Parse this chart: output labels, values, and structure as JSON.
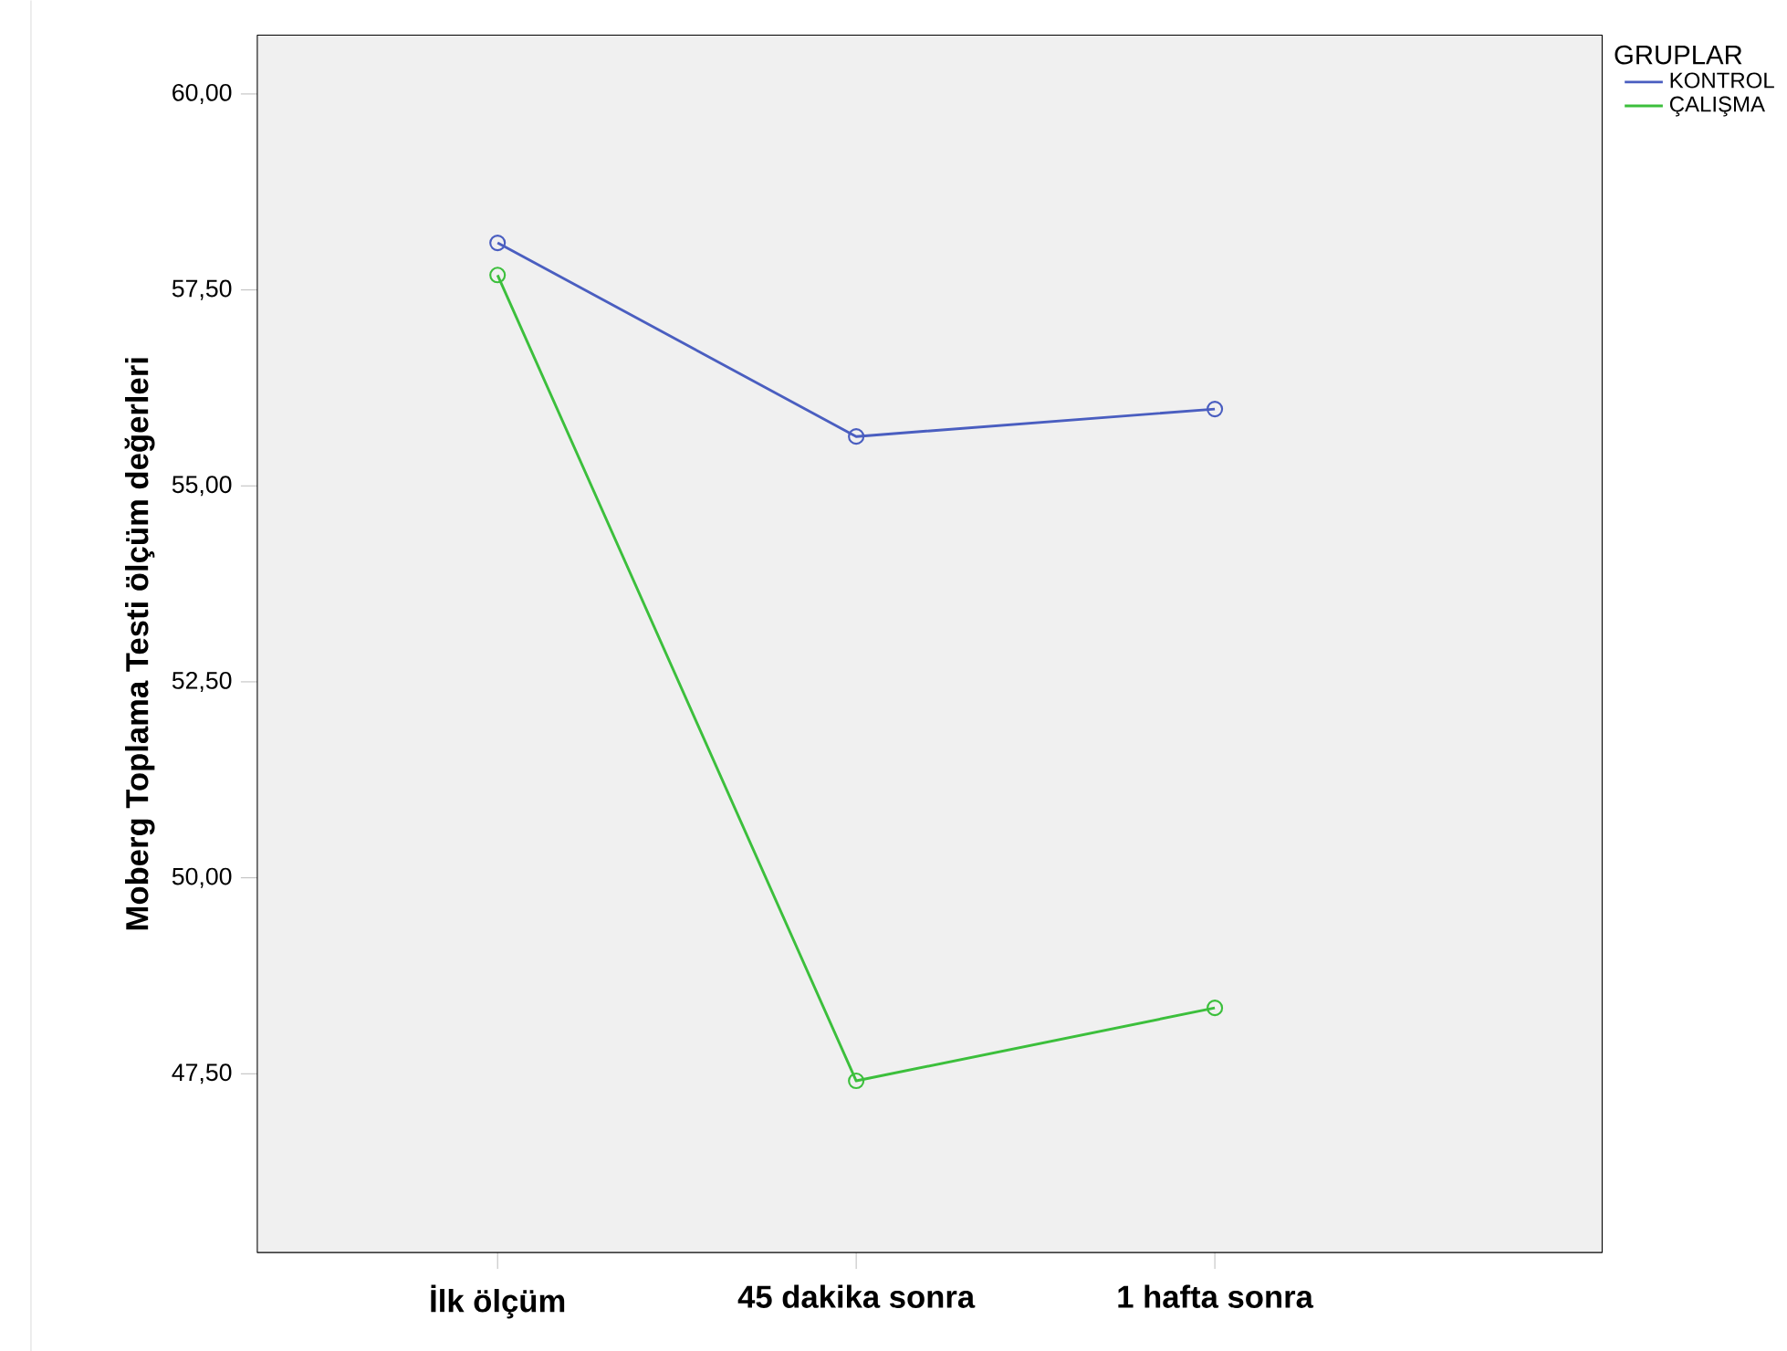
{
  "chart_data": {
    "type": "line",
    "ylabel": "Moberg Toplama Testi ölçüm değerleri",
    "legend_title": "GRUPLAR",
    "categories": [
      "İlk ölçüm",
      "45 dakika sonra",
      "1 hafta sonra"
    ],
    "series": [
      {
        "name": "KONTROL",
        "color": "#4a5ec0",
        "values": [
          58.1,
          55.63,
          55.98
        ]
      },
      {
        "name": "ÇALIŞMA",
        "color": "#3cbf3c",
        "values": [
          57.69,
          47.41,
          48.34
        ]
      }
    ],
    "ylim": [
      45.22,
      60.75
    ],
    "yticks": [
      {
        "value": 47.5,
        "label": "47,50"
      },
      {
        "value": 50,
        "label": "50,00"
      },
      {
        "value": 52.5,
        "label": "52,50"
      },
      {
        "value": 55,
        "label": "55,00"
      },
      {
        "value": 57.5,
        "label": "57,50"
      },
      {
        "value": 60,
        "label": "60,00"
      }
    ],
    "marker": "circle",
    "line_style": "solid",
    "grid": false,
    "legend": "top right"
  }
}
